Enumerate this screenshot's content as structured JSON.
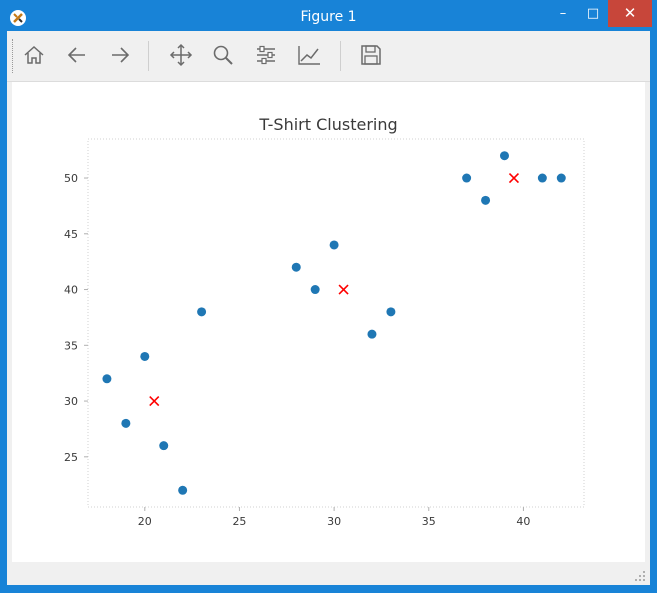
{
  "window": {
    "title": "Figure 1",
    "colors": {
      "titlebar": "#1883d7",
      "close": "#c7463a"
    }
  },
  "toolbar": {
    "buttons": [
      {
        "name": "home-button",
        "icon": "home-icon"
      },
      {
        "name": "back-button",
        "icon": "arrow-left-icon"
      },
      {
        "name": "forward-button",
        "icon": "arrow-right-icon"
      },
      {
        "name": "pan-button",
        "icon": "move-icon"
      },
      {
        "name": "zoom-button",
        "icon": "magnifier-icon"
      },
      {
        "name": "subplots-button",
        "icon": "sliders-icon"
      },
      {
        "name": "axes-button",
        "icon": "line-chart-icon"
      },
      {
        "name": "save-button",
        "icon": "floppy-icon"
      }
    ]
  },
  "chart_data": {
    "type": "scatter",
    "title": "T-Shirt Clustering",
    "xlim": [
      17.0,
      43.2
    ],
    "ylim": [
      20.5,
      53.5
    ],
    "xticks": [
      20,
      25,
      30,
      35,
      40
    ],
    "yticks": [
      25,
      30,
      35,
      40,
      45,
      50
    ],
    "grid": false,
    "series": [
      {
        "marker": "circle",
        "color": "#1f77b4",
        "points": [
          [
            18,
            32
          ],
          [
            19,
            28
          ],
          [
            20,
            34
          ],
          [
            21,
            26
          ],
          [
            22,
            22
          ],
          [
            23,
            38
          ],
          [
            28,
            42
          ],
          [
            29,
            40
          ],
          [
            30,
            44
          ],
          [
            32,
            36
          ],
          [
            33,
            38
          ],
          [
            37,
            50
          ],
          [
            38,
            48
          ],
          [
            39,
            52
          ],
          [
            41,
            50
          ],
          [
            42,
            50
          ]
        ]
      },
      {
        "marker": "x",
        "color": "#ff0000",
        "points": [
          [
            20.5,
            30
          ],
          [
            30.5,
            40
          ],
          [
            39.5,
            50
          ]
        ]
      }
    ]
  }
}
